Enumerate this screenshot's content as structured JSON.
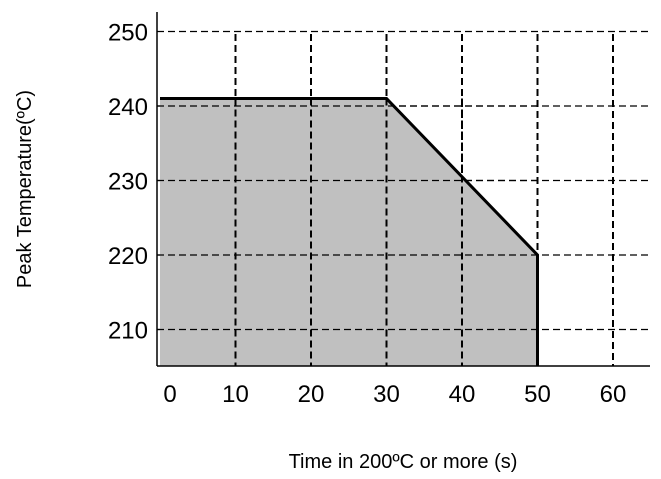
{
  "chart_data": {
    "type": "area",
    "title": "",
    "xlabel": "Time in 200ºC or more (s)",
    "ylabel": "Peak Temperature(ºC)",
    "xlim": [
      0,
      60
    ],
    "ylim": [
      205,
      252
    ],
    "x_ticks": [
      0,
      10,
      20,
      30,
      40,
      50,
      60
    ],
    "y_ticks": [
      210,
      220,
      230,
      240,
      250
    ],
    "x_tick_labels": [
      "0",
      "10",
      "20",
      "30",
      "40",
      "50",
      "60"
    ],
    "y_tick_labels": [
      "210",
      "220",
      "230",
      "240",
      "250"
    ],
    "grid": "dashed",
    "series": [
      {
        "x": [
          0,
          30,
          50,
          50
        ],
        "y": [
          241,
          241,
          220,
          205
        ]
      }
    ],
    "colors": {
      "fill": "#c0c0c0",
      "line": "#000000",
      "grid": "#000000"
    }
  }
}
